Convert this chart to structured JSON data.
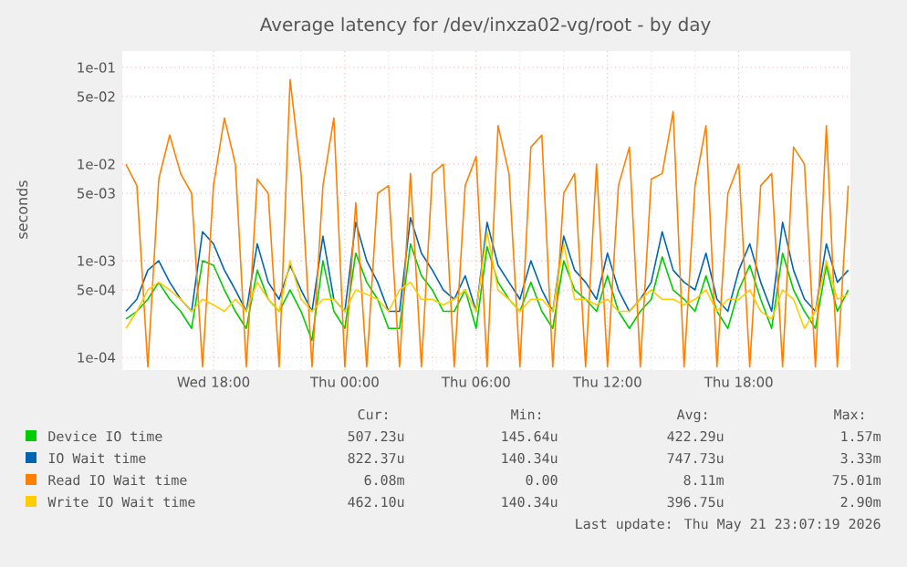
{
  "chart_data": {
    "type": "line",
    "title": "Average latency for /dev/inxza02-vg/root - by day",
    "ylabel": "seconds",
    "log": "y",
    "grid": true,
    "legend": "bottom",
    "marker": "none",
    "line_style": "solid",
    "xlim": [
      "2026-05-20T13:50",
      "2026-05-21T23:06"
    ],
    "ylim": [
      7.4e-05,
      0.148
    ],
    "xticks": [
      {
        "value": "2026-05-20T18:00",
        "label": "Wed 18:00"
      },
      {
        "value": "2026-05-21T00:00",
        "label": "Thu 00:00"
      },
      {
        "value": "2026-05-21T06:00",
        "label": "Thu 06:00"
      },
      {
        "value": "2026-05-21T12:00",
        "label": "Thu 12:00"
      },
      {
        "value": "2026-05-21T18:00",
        "label": "Thu 18:00"
      }
    ],
    "yticks": [
      {
        "value": 0.1,
        "label": "1e-01"
      },
      {
        "value": 0.05,
        "label": "5e-02"
      },
      {
        "value": 0.01,
        "label": "1e-02"
      },
      {
        "value": 0.005,
        "label": "5e-03"
      },
      {
        "value": 0.001,
        "label": "1e-03"
      },
      {
        "value": 0.0005,
        "label": "5e-04"
      },
      {
        "value": 0.0001,
        "label": "1e-04"
      }
    ],
    "x": [
      "2026-05-20T14:00",
      "2026-05-20T14:30",
      "2026-05-20T15:00",
      "2026-05-20T15:30",
      "2026-05-20T16:00",
      "2026-05-20T16:30",
      "2026-05-20T17:00",
      "2026-05-20T17:30",
      "2026-05-20T18:00",
      "2026-05-20T18:30",
      "2026-05-20T19:00",
      "2026-05-20T19:30",
      "2026-05-20T20:00",
      "2026-05-20T20:30",
      "2026-05-20T21:00",
      "2026-05-20T21:30",
      "2026-05-20T22:00",
      "2026-05-20T22:30",
      "2026-05-20T23:00",
      "2026-05-20T23:30",
      "2026-05-21T00:00",
      "2026-05-21T00:30",
      "2026-05-21T01:00",
      "2026-05-21T01:30",
      "2026-05-21T02:00",
      "2026-05-21T02:30",
      "2026-05-21T03:00",
      "2026-05-21T03:30",
      "2026-05-21T04:00",
      "2026-05-21T04:30",
      "2026-05-21T05:00",
      "2026-05-21T05:30",
      "2026-05-21T06:00",
      "2026-05-21T06:30",
      "2026-05-21T07:00",
      "2026-05-21T07:30",
      "2026-05-21T08:00",
      "2026-05-21T08:30",
      "2026-05-21T09:00",
      "2026-05-21T09:30",
      "2026-05-21T10:00",
      "2026-05-21T10:30",
      "2026-05-21T11:00",
      "2026-05-21T11:30",
      "2026-05-21T12:00",
      "2026-05-21T12:30",
      "2026-05-21T13:00",
      "2026-05-21T13:30",
      "2026-05-21T14:00",
      "2026-05-21T14:30",
      "2026-05-21T15:00",
      "2026-05-21T15:30",
      "2026-05-21T16:00",
      "2026-05-21T16:30",
      "2026-05-21T17:00",
      "2026-05-21T17:30",
      "2026-05-21T18:00",
      "2026-05-21T18:30",
      "2026-05-21T19:00",
      "2026-05-21T19:30",
      "2026-05-21T20:00",
      "2026-05-21T20:30",
      "2026-05-21T21:00",
      "2026-05-21T21:30",
      "2026-05-21T22:00",
      "2026-05-21T22:30",
      "2026-05-21T23:00"
    ],
    "series": [
      {
        "name": "Device IO time",
        "color": "#00cc00",
        "values": [
          0.00025,
          0.0003,
          0.0004,
          0.0006,
          0.0004,
          0.0003,
          0.0002,
          0.001,
          0.0009,
          0.0005,
          0.0003,
          0.0002,
          0.0008,
          0.0004,
          0.0003,
          0.0005,
          0.0003,
          0.00015,
          0.001,
          0.0003,
          0.0002,
          0.0012,
          0.0006,
          0.0004,
          0.0002,
          0.0002,
          0.0015,
          0.0007,
          0.0005,
          0.0003,
          0.0003,
          0.0005,
          0.0002,
          0.0014,
          0.0006,
          0.0004,
          0.0003,
          0.0006,
          0.0003,
          0.0002,
          0.001,
          0.0005,
          0.0004,
          0.0003,
          0.0007,
          0.0003,
          0.0002,
          0.0003,
          0.0004,
          0.0011,
          0.0005,
          0.0004,
          0.0003,
          0.0007,
          0.0003,
          0.0002,
          0.0005,
          0.0009,
          0.0004,
          0.0002,
          0.0012,
          0.0005,
          0.0003,
          0.0002,
          0.0009,
          0.0003,
          0.0005
        ]
      },
      {
        "name": "IO Wait time",
        "color": "#0066b3",
        "values": [
          0.0003,
          0.0004,
          0.0008,
          0.001,
          0.0006,
          0.0004,
          0.0003,
          0.002,
          0.0015,
          0.0008,
          0.0005,
          0.0003,
          0.0015,
          0.0006,
          0.0004,
          0.0009,
          0.0005,
          0.0003,
          0.0018,
          0.0004,
          0.0003,
          0.0025,
          0.001,
          0.0006,
          0.0003,
          0.0003,
          0.0028,
          0.0012,
          0.0008,
          0.0005,
          0.0004,
          0.0007,
          0.0003,
          0.0025,
          0.0009,
          0.0006,
          0.0004,
          0.001,
          0.0005,
          0.0003,
          0.0018,
          0.0008,
          0.0006,
          0.0004,
          0.0012,
          0.0005,
          0.0003,
          0.0004,
          0.0006,
          0.002,
          0.0008,
          0.0006,
          0.0005,
          0.0012,
          0.0004,
          0.0003,
          0.0008,
          0.0015,
          0.0006,
          0.0003,
          0.0025,
          0.0008,
          0.0004,
          0.0003,
          0.0015,
          0.0006,
          0.0008
        ]
      },
      {
        "name": "Read IO Wait time",
        "color": "#ff8000",
        "values": [
          0.01,
          0.006,
          8e-05,
          0.007,
          0.02,
          0.008,
          0.005,
          8e-05,
          0.006,
          0.03,
          0.01,
          8e-05,
          0.007,
          0.005,
          8e-05,
          0.075,
          0.008,
          8e-05,
          0.006,
          0.03,
          8e-05,
          0.004,
          8e-05,
          0.005,
          0.006,
          8e-05,
          0.008,
          8e-05,
          0.008,
          0.01,
          8e-05,
          0.006,
          0.012,
          8e-05,
          0.025,
          0.008,
          8e-05,
          0.015,
          0.02,
          8e-05,
          0.005,
          0.008,
          8e-05,
          0.01,
          8e-05,
          0.006,
          0.015,
          8e-05,
          0.007,
          0.008,
          0.035,
          8e-05,
          0.006,
          0.025,
          8e-05,
          0.005,
          0.01,
          8e-05,
          0.006,
          0.008,
          8e-05,
          0.015,
          0.01,
          8e-05,
          0.025,
          8e-05,
          0.006
        ]
      },
      {
        "name": "Write IO Wait time",
        "color": "#ffcc00",
        "values": [
          0.0002,
          0.0003,
          0.0005,
          0.0006,
          0.0005,
          0.0004,
          0.0003,
          0.0004,
          0.00035,
          0.0003,
          0.0004,
          0.0003,
          0.0006,
          0.0004,
          0.0003,
          0.001,
          0.0004,
          0.0003,
          0.0004,
          0.0004,
          0.0003,
          0.0005,
          0.00045,
          0.0004,
          0.0003,
          0.0005,
          0.0006,
          0.0004,
          0.0004,
          0.00035,
          0.0004,
          0.0005,
          0.0003,
          0.002,
          0.0005,
          0.0004,
          0.0003,
          0.0004,
          0.0004,
          0.0003,
          0.0015,
          0.0004,
          0.0004,
          0.00035,
          0.0004,
          0.0003,
          0.0003,
          0.0004,
          0.0005,
          0.0004,
          0.0004,
          0.00035,
          0.0004,
          0.0005,
          0.0003,
          0.0004,
          0.0004,
          0.0005,
          0.0003,
          0.00025,
          0.0005,
          0.0004,
          0.0002,
          0.0003,
          0.001,
          0.0004,
          0.00045
        ]
      }
    ],
    "annotations": [
      "Cur:",
      "Min:",
      "Avg:",
      "Max:",
      "507.23u",
      "145.64u",
      "422.29u",
      "1.57m",
      "822.37u",
      "140.34u",
      "747.73u",
      "3.33m",
      "6.08m",
      "0.00",
      "8.11m",
      "75.01m",
      "462.10u",
      "140.34u",
      "396.75u",
      "2.90m",
      "Last update: Thu May 21 23:07:19 2026"
    ]
  }
}
